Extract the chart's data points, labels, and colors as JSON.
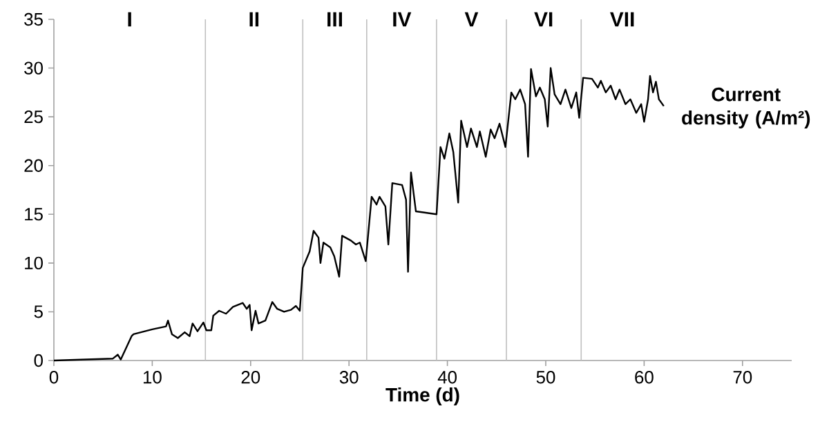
{
  "chart_data": {
    "type": "line",
    "xlabel": "Time (d)",
    "ylabel": "Current density (A/m²)",
    "xlim": [
      0,
      75
    ],
    "ylim": [
      0,
      35
    ],
    "xticks": [
      0,
      10,
      20,
      30,
      40,
      50,
      60,
      70
    ],
    "yticks": [
      0,
      5,
      10,
      15,
      20,
      25,
      30,
      35
    ],
    "series": [
      {
        "color": "#000000",
        "x": [
          0,
          6.0,
          6.5,
          6.8,
          7.9,
          8.1,
          10,
          11.4,
          11.6,
          12,
          12.6,
          13.3,
          13.8,
          14.1,
          14.6,
          15.2,
          15.5,
          16,
          16.2,
          16.8,
          17.5,
          18.2,
          19.2,
          19.6,
          19.9,
          20.1,
          20.5,
          20.8,
          21.5,
          22.2,
          22.7,
          23.4,
          24.1,
          24.6,
          25.0,
          25.3,
          26.0,
          26.4,
          26.9,
          27.1,
          27.4,
          28.1,
          28.5,
          29.0,
          29.3,
          30.2,
          30.7,
          31.1,
          31.7,
          32.3,
          32.8,
          33.1,
          33.7,
          34.0,
          34.4,
          35.4,
          35.8,
          36.0,
          36.3,
          36.8,
          38.9,
          39.3,
          39.7,
          40.2,
          40.6,
          41.1,
          41.4,
          42.0,
          42.4,
          43.0,
          43.3,
          43.9,
          44.4,
          44.8,
          45.3,
          45.9,
          46.5,
          46.9,
          47.4,
          47.9,
          48.2,
          48.5,
          49.0,
          49.4,
          49.9,
          50.2,
          50.5,
          50.9,
          51.5,
          52.0,
          52.6,
          53.1,
          53.4,
          53.8,
          54.7,
          55.3,
          55.6,
          56.1,
          56.6,
          57.1,
          57.5,
          58.1,
          58.6,
          59.2,
          59.7,
          60.0,
          60.4,
          60.6,
          60.9,
          61.2,
          61.5,
          62.0
        ],
        "values": [
          0,
          0.2,
          0.6,
          0.1,
          2.5,
          2.7,
          3.2,
          3.5,
          4.1,
          2.7,
          2.3,
          2.9,
          2.5,
          3.8,
          3.0,
          3.9,
          3.1,
          3.1,
          4.6,
          5.1,
          4.8,
          5.5,
          5.9,
          5.3,
          5.7,
          3.1,
          5.1,
          3.8,
          4.1,
          6.0,
          5.3,
          5.0,
          5.2,
          5.6,
          5.1,
          9.5,
          11.2,
          13.3,
          12.6,
          10.0,
          12.1,
          11.6,
          10.7,
          8.6,
          12.8,
          12.3,
          11.9,
          12.1,
          10.2,
          16.8,
          16.0,
          16.8,
          15.8,
          11.9,
          18.2,
          18.0,
          16.5,
          9.1,
          19.3,
          15.3,
          15.0,
          21.9,
          20.7,
          23.3,
          21.4,
          16.2,
          24.6,
          21.9,
          23.8,
          21.9,
          23.5,
          20.9,
          23.7,
          22.8,
          24.3,
          21.9,
          27.5,
          26.8,
          27.8,
          26.3,
          20.9,
          29.9,
          27.1,
          28.0,
          26.8,
          24.0,
          30.0,
          27.3,
          26.3,
          27.8,
          25.9,
          27.5,
          24.9,
          29.0,
          28.9,
          28.0,
          28.7,
          27.5,
          28.2,
          26.8,
          27.8,
          26.3,
          26.8,
          25.4,
          26.3,
          24.5,
          26.8,
          29.2,
          27.5,
          28.6,
          26.8,
          26.1
        ]
      }
    ],
    "ref_lines": [
      {
        "axis": "x",
        "value": 15.4,
        "color": "#bfbfbf"
      },
      {
        "axis": "x",
        "value": 25.3,
        "color": "#bfbfbf"
      },
      {
        "axis": "x",
        "value": 31.8,
        "color": "#bfbfbf"
      },
      {
        "axis": "x",
        "value": 38.9,
        "color": "#bfbfbf"
      },
      {
        "axis": "x",
        "value": 46.0,
        "color": "#bfbfbf"
      },
      {
        "axis": "x",
        "value": 53.6,
        "color": "#bfbfbf"
      }
    ],
    "annotations": [
      "I",
      "II",
      "III",
      "IV",
      "V",
      "VI",
      "VII"
    ]
  }
}
